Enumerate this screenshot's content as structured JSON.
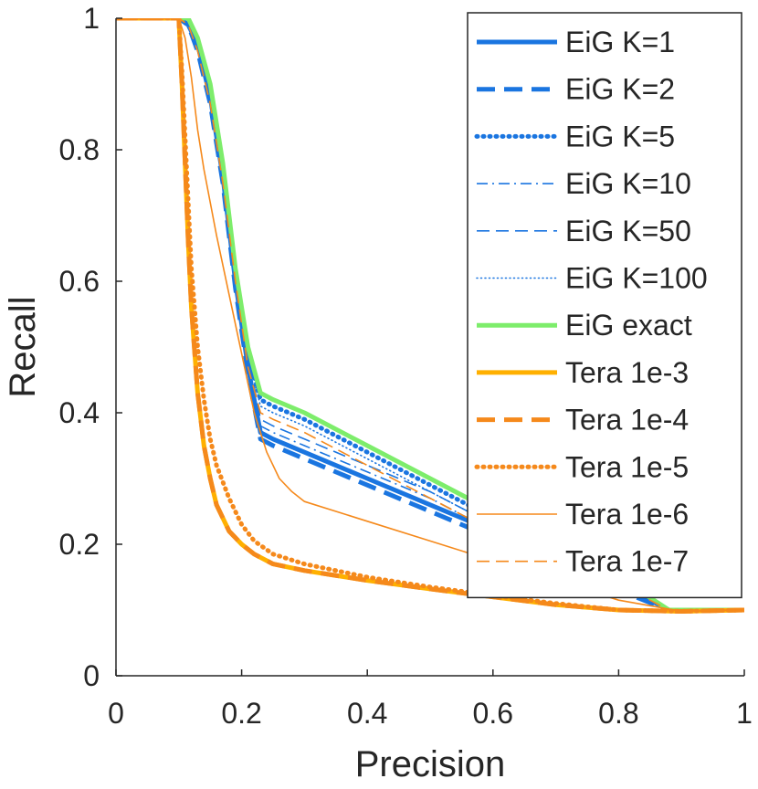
{
  "chart_data": {
    "type": "line",
    "title": "",
    "xlabel": "Precision",
    "ylabel": "Recall",
    "xlim": [
      0,
      1
    ],
    "ylim": [
      0,
      1
    ],
    "xticks": [
      0,
      0.2,
      0.4,
      0.6,
      0.8,
      1
    ],
    "yticks": [
      0,
      0.2,
      0.4,
      0.6,
      0.8,
      1
    ],
    "xtick_labels": [
      "0",
      "0.2",
      "0.4",
      "0.6",
      "0.8",
      "1"
    ],
    "ytick_labels": [
      "0",
      "0.2",
      "0.4",
      "0.6",
      "0.8",
      "1"
    ],
    "grid": false,
    "legend_position": "top-right",
    "series": [
      {
        "name": "EiG K=1",
        "color": "#1a75e0",
        "style": "solid",
        "weight": "thick",
        "x": [
          0,
          0.1,
          0.115,
          0.13,
          0.15,
          0.17,
          0.19,
          0.21,
          0.23,
          0.25,
          0.3,
          0.4,
          0.5,
          0.6,
          0.7,
          0.8,
          0.88,
          0.9,
          1.0
        ],
        "y": [
          1.0,
          1.0,
          0.99,
          0.96,
          0.88,
          0.76,
          0.6,
          0.47,
          0.37,
          0.36,
          0.34,
          0.3,
          0.26,
          0.22,
          0.18,
          0.14,
          0.1,
          0.1,
          0.1
        ]
      },
      {
        "name": "EiG K=2",
        "color": "#1a75e0",
        "style": "dashed",
        "weight": "thick",
        "x": [
          0,
          0.1,
          0.115,
          0.13,
          0.15,
          0.17,
          0.19,
          0.21,
          0.23,
          0.25,
          0.3,
          0.4,
          0.5,
          0.6,
          0.7,
          0.8,
          0.88,
          0.9,
          1.0
        ],
        "y": [
          1.0,
          1.0,
          0.99,
          0.95,
          0.87,
          0.75,
          0.59,
          0.46,
          0.36,
          0.35,
          0.33,
          0.29,
          0.25,
          0.21,
          0.17,
          0.13,
          0.1,
          0.1,
          0.1
        ]
      },
      {
        "name": "EiG K=5",
        "color": "#1a75e0",
        "style": "dotted",
        "weight": "thick",
        "x": [
          0,
          0.1,
          0.115,
          0.13,
          0.15,
          0.17,
          0.19,
          0.21,
          0.23,
          0.25,
          0.3,
          0.4,
          0.5,
          0.6,
          0.7,
          0.8,
          0.88,
          0.9,
          1.0
        ],
        "y": [
          1.0,
          1.0,
          0.99,
          0.96,
          0.89,
          0.77,
          0.61,
          0.49,
          0.42,
          0.41,
          0.39,
          0.34,
          0.29,
          0.24,
          0.19,
          0.14,
          0.1,
          0.1,
          0.1
        ]
      },
      {
        "name": "EiG K=10",
        "color": "#1a75e0",
        "style": "dashdot",
        "weight": "thin",
        "x": [
          0,
          0.1,
          0.115,
          0.13,
          0.15,
          0.17,
          0.19,
          0.21,
          0.23,
          0.25,
          0.3,
          0.4,
          0.5,
          0.6,
          0.7,
          0.8,
          0.88,
          0.9,
          1.0
        ],
        "y": [
          1.0,
          1.0,
          0.99,
          0.96,
          0.88,
          0.76,
          0.6,
          0.48,
          0.38,
          0.37,
          0.35,
          0.31,
          0.27,
          0.22,
          0.18,
          0.14,
          0.1,
          0.1,
          0.1
        ]
      },
      {
        "name": "EiG K=50",
        "color": "#1a75e0",
        "style": "dashed",
        "weight": "thin",
        "x": [
          0,
          0.1,
          0.115,
          0.13,
          0.15,
          0.17,
          0.19,
          0.21,
          0.23,
          0.25,
          0.3,
          0.4,
          0.5,
          0.6,
          0.7,
          0.8,
          0.88,
          0.9,
          1.0
        ],
        "y": [
          1.0,
          1.0,
          0.99,
          0.96,
          0.89,
          0.77,
          0.61,
          0.49,
          0.39,
          0.38,
          0.36,
          0.32,
          0.28,
          0.23,
          0.18,
          0.14,
          0.1,
          0.1,
          0.1
        ]
      },
      {
        "name": "EiG K=100",
        "color": "#1a75e0",
        "style": "dotted",
        "weight": "thin",
        "x": [
          0,
          0.1,
          0.115,
          0.13,
          0.15,
          0.17,
          0.19,
          0.21,
          0.23,
          0.25,
          0.3,
          0.4,
          0.5,
          0.6,
          0.7,
          0.8,
          0.88,
          0.9,
          1.0
        ],
        "y": [
          1.0,
          1.0,
          0.99,
          0.96,
          0.89,
          0.77,
          0.61,
          0.49,
          0.41,
          0.4,
          0.38,
          0.33,
          0.28,
          0.23,
          0.19,
          0.14,
          0.1,
          0.1,
          0.1
        ]
      },
      {
        "name": "EiG exact",
        "color": "#7ded6b",
        "style": "solid",
        "weight": "thick",
        "x": [
          0,
          0.1,
          0.115,
          0.13,
          0.15,
          0.17,
          0.19,
          0.21,
          0.23,
          0.25,
          0.3,
          0.4,
          0.5,
          0.6,
          0.7,
          0.8,
          0.88,
          0.9,
          1.0
        ],
        "y": [
          1.0,
          1.0,
          1.0,
          0.97,
          0.9,
          0.78,
          0.62,
          0.5,
          0.43,
          0.42,
          0.4,
          0.35,
          0.3,
          0.25,
          0.2,
          0.15,
          0.1,
          0.1,
          0.1
        ]
      },
      {
        "name": "Tera 1e-3",
        "color": "#ffb000",
        "style": "solid",
        "weight": "thick",
        "x": [
          0,
          0.1,
          0.105,
          0.11,
          0.115,
          0.12,
          0.13,
          0.14,
          0.15,
          0.16,
          0.18,
          0.2,
          0.22,
          0.25,
          0.3,
          0.4,
          0.5,
          0.6,
          0.7,
          0.8,
          0.9,
          1.0
        ],
        "y": [
          1.0,
          1.0,
          0.9,
          0.78,
          0.66,
          0.56,
          0.43,
          0.35,
          0.3,
          0.26,
          0.22,
          0.2,
          0.185,
          0.17,
          0.16,
          0.145,
          0.132,
          0.12,
          0.108,
          0.1,
          0.098,
          0.1
        ]
      },
      {
        "name": "Tera 1e-4",
        "color": "#f5891b",
        "style": "dashed",
        "weight": "thick",
        "x": [
          0,
          0.1,
          0.105,
          0.11,
          0.115,
          0.12,
          0.13,
          0.14,
          0.15,
          0.16,
          0.18,
          0.2,
          0.22,
          0.25,
          0.3,
          0.4,
          0.5,
          0.6,
          0.7,
          0.8,
          0.9,
          1.0
        ],
        "y": [
          1.0,
          1.0,
          0.9,
          0.78,
          0.66,
          0.56,
          0.43,
          0.35,
          0.3,
          0.26,
          0.22,
          0.2,
          0.185,
          0.17,
          0.16,
          0.145,
          0.132,
          0.12,
          0.108,
          0.1,
          0.098,
          0.1
        ]
      },
      {
        "name": "Tera 1e-5",
        "color": "#f5891b",
        "style": "dotted",
        "weight": "thick",
        "x": [
          0,
          0.1,
          0.105,
          0.11,
          0.115,
          0.12,
          0.13,
          0.14,
          0.15,
          0.16,
          0.18,
          0.2,
          0.22,
          0.25,
          0.3,
          0.4,
          0.5,
          0.6,
          0.7,
          0.8,
          0.9,
          1.0
        ],
        "y": [
          1.0,
          1.0,
          0.92,
          0.82,
          0.72,
          0.62,
          0.5,
          0.42,
          0.36,
          0.32,
          0.27,
          0.23,
          0.205,
          0.185,
          0.17,
          0.15,
          0.135,
          0.122,
          0.11,
          0.1,
          0.098,
          0.1
        ]
      },
      {
        "name": "Tera 1e-6",
        "color": "#f5891b",
        "style": "solid",
        "weight": "thin",
        "x": [
          0,
          0.1,
          0.11,
          0.12,
          0.13,
          0.14,
          0.15,
          0.16,
          0.18,
          0.2,
          0.22,
          0.24,
          0.26,
          0.28,
          0.3,
          0.4,
          0.5,
          0.6,
          0.7,
          0.8,
          0.9,
          1.0
        ],
        "y": [
          1.0,
          1.0,
          0.97,
          0.91,
          0.83,
          0.77,
          0.72,
          0.67,
          0.58,
          0.49,
          0.4,
          0.34,
          0.3,
          0.28,
          0.265,
          0.235,
          0.205,
          0.175,
          0.145,
          0.115,
          0.098,
          0.1
        ]
      },
      {
        "name": "Tera 1e-7",
        "color": "#f5891b",
        "style": "dashed",
        "weight": "thin",
        "x": [
          0,
          0.1,
          0.115,
          0.13,
          0.15,
          0.17,
          0.19,
          0.21,
          0.23,
          0.25,
          0.3,
          0.4,
          0.5,
          0.6,
          0.7,
          0.8,
          0.88,
          0.9,
          1.0
        ],
        "y": [
          1.0,
          1.0,
          0.99,
          0.95,
          0.87,
          0.75,
          0.6,
          0.47,
          0.4,
          0.39,
          0.37,
          0.32,
          0.27,
          0.22,
          0.18,
          0.14,
          0.1,
          0.1,
          0.1
        ]
      }
    ]
  }
}
